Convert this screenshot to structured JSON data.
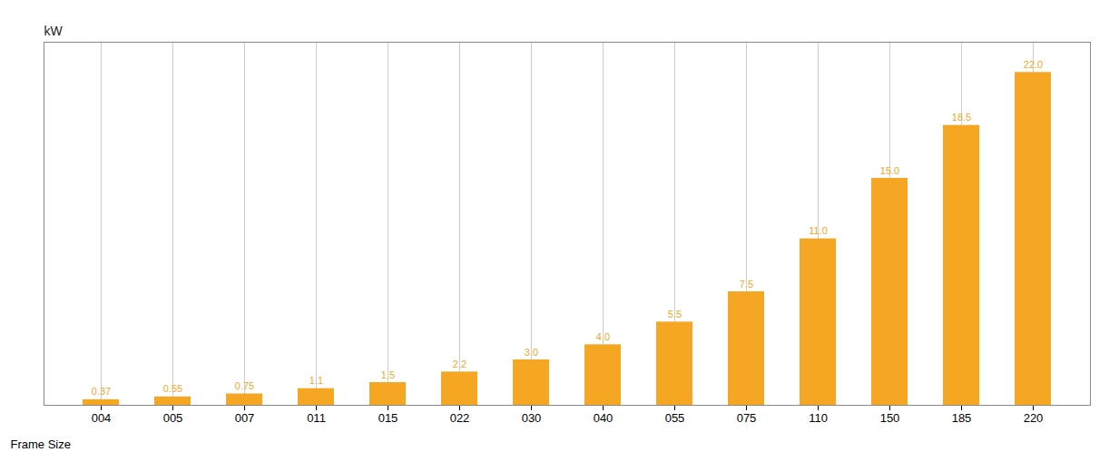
{
  "chart_data": {
    "type": "bar",
    "categories": [
      "004",
      "005",
      "007",
      "011",
      "015",
      "022",
      "030",
      "040",
      "055",
      "075",
      "110",
      "150",
      "185",
      "220"
    ],
    "values": [
      0.37,
      0.55,
      0.75,
      1.1,
      1.5,
      2.2,
      3.0,
      4.0,
      5.5,
      7.5,
      11.0,
      15.0,
      18.5,
      22.0
    ],
    "value_labels": [
      "0.37",
      "0.55",
      "0.75",
      "1.1",
      "1.5",
      "2.2",
      "3.0",
      "4.0",
      "5.5",
      "7.5",
      "11.0",
      "15.0",
      "18.5",
      "22.0"
    ],
    "color": "#F5A623",
    "xlabel": "Frame Size",
    "ylabel": "kW",
    "ylim": [
      0,
      24
    ],
    "grid": true,
    "data_labels": true,
    "tick_labels": "x"
  }
}
